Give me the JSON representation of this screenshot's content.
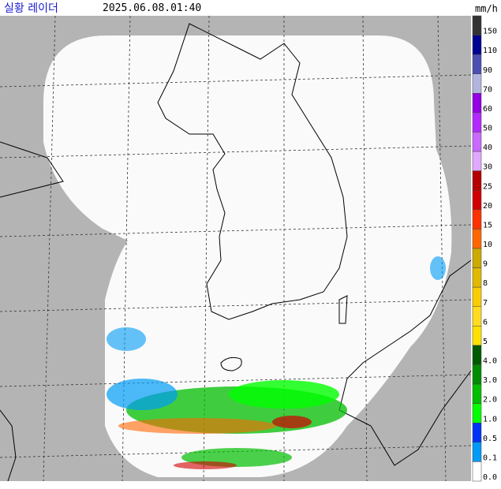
{
  "header": {
    "title": "실황 레이더",
    "timestamp": "2025.06.08.01:40",
    "unit": "mm/h"
  },
  "legend": {
    "items": [
      {
        "label": "150",
        "color": "#333333"
      },
      {
        "label": "110",
        "color": "#000390"
      },
      {
        "label": "90",
        "color": "#4c4eb1"
      },
      {
        "label": "70",
        "color": "#b3b4de"
      },
      {
        "label": "60",
        "color": "#9300e4"
      },
      {
        "label": "50",
        "color": "#b329ff"
      },
      {
        "label": "40",
        "color": "#c969ff"
      },
      {
        "label": "30",
        "color": "#e0a9ff"
      },
      {
        "label": "25",
        "color": "#b40000"
      },
      {
        "label": "20",
        "color": "#d20000"
      },
      {
        "label": "15",
        "color": "#ff3200"
      },
      {
        "label": "10",
        "color": "#ff6600"
      },
      {
        "label": "9",
        "color": "#ccaa00"
      },
      {
        "label": "8",
        "color": "#e0b900"
      },
      {
        "label": "7",
        "color": "#f9cd00"
      },
      {
        "label": "6",
        "color": "#ffdc1f"
      },
      {
        "label": "5",
        "color": "#ffe100"
      },
      {
        "label": "4.0",
        "color": "#005a00"
      },
      {
        "label": "3.0",
        "color": "#008c00"
      },
      {
        "label": "2.0",
        "color": "#00be00"
      },
      {
        "label": "1.0",
        "color": "#00ff00"
      },
      {
        "label": "0.5",
        "color": "#0033f5"
      },
      {
        "label": "0.1",
        "color": "#009bf5"
      },
      {
        "label": "0.0",
        "color": "#ffffff"
      }
    ]
  }
}
